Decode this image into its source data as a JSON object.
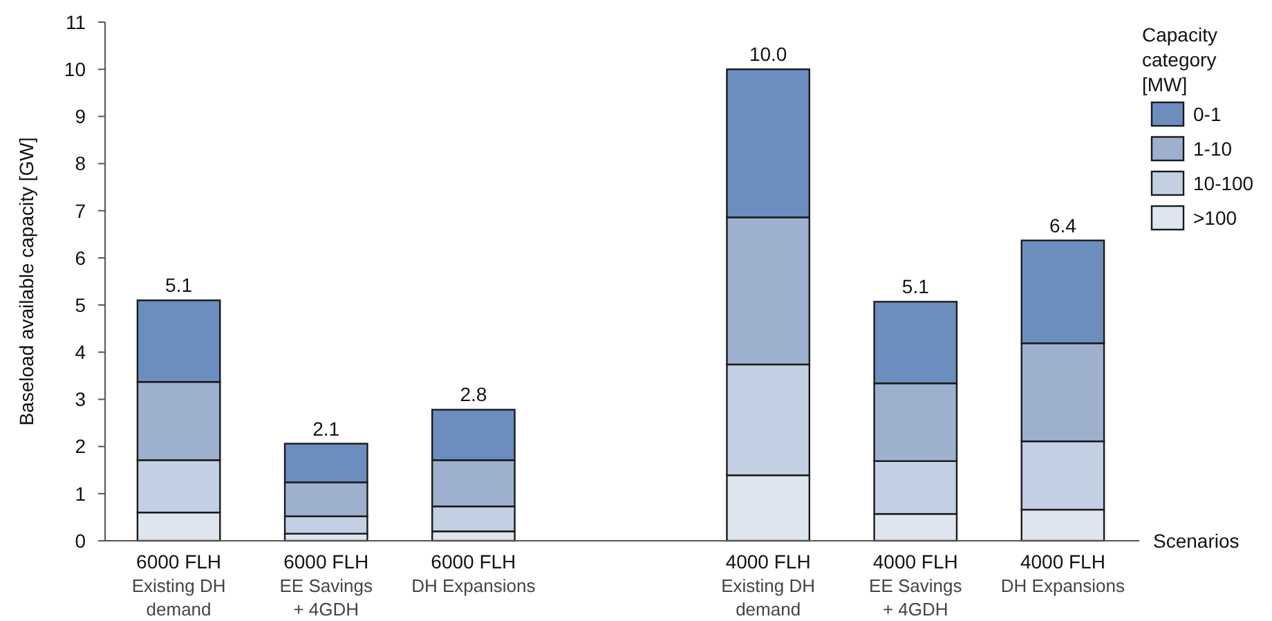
{
  "chart_data": {
    "type": "bar",
    "stacked": true,
    "ylabel": "Baseload available capacity [GW]",
    "xlabel": "Scenarios",
    "legend_title": "Capacity category [MW]",
    "legend": "top right",
    "grid": false,
    "categories": [
      "6000 FLH\nExisting DH\ndemand",
      "6000 FLH\nEE Savings\n+ 4GDH",
      "6000 FLH\nDH Expansions",
      null,
      "4000 FLH\nExisting DH\ndemand",
      "4000 FLH\nEE Savings\n+ 4GDH",
      "4000 FLH\nDH Expansions"
    ],
    "series": [
      {
        "name": ">100",
        "color": "#dfe5ef",
        "values": [
          0.6,
          0.15,
          0.2,
          null,
          1.39,
          0.57,
          0.66
        ]
      },
      {
        "name": "10-100",
        "color": "#c3cfe2",
        "values": [
          1.11,
          0.37,
          0.53,
          null,
          2.35,
          1.12,
          1.45
        ]
      },
      {
        "name": "1-10",
        "color": "#9db0ce",
        "values": [
          1.66,
          0.72,
          0.98,
          null,
          3.12,
          1.65,
          2.08
        ]
      },
      {
        "name": "0-1",
        "color": "#6c8ebf",
        "values": [
          1.73,
          0.82,
          1.07,
          null,
          3.14,
          1.73,
          2.18
        ]
      }
    ],
    "totals": [
      "5.1",
      "2.1",
      "2.8",
      null,
      "10.0",
      "5.1",
      "6.4"
    ],
    "ylim": [
      0,
      11
    ],
    "yticks": [
      0,
      1,
      2,
      3,
      4,
      5,
      6,
      7,
      8,
      9,
      10,
      11
    ]
  }
}
